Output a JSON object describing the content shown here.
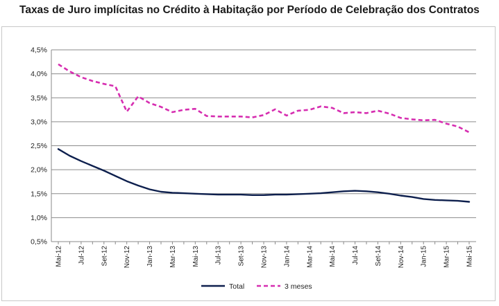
{
  "chart_data": {
    "type": "line",
    "title": "Taxas de Juro implícitas no Crédito à Habitação por Período de Celebração dos Contratos",
    "xlabel": "",
    "ylabel": "",
    "ylim": [
      0.5,
      4.5
    ],
    "y_ticks": [
      "0,5%",
      "1,0%",
      "1,5%",
      "2,0%",
      "2,5%",
      "3,0%",
      "3,5%",
      "4,0%",
      "4,5%"
    ],
    "categories": [
      "Mai-12",
      "Jun-12",
      "Jul-12",
      "Ago-12",
      "Set-12",
      "Out-12",
      "Nov-12",
      "Dez-12",
      "Jan-13",
      "Fev-13",
      "Mar-13",
      "Abr-13",
      "Mai-13",
      "Jun-13",
      "Jul-13",
      "Ago-13",
      "Set-13",
      "Out-13",
      "Nov-13",
      "Dez-13",
      "Jan-14",
      "Fev-14",
      "Mar-14",
      "Abr-14",
      "Mai-14",
      "Jun-14",
      "Jul-14",
      "Ago-14",
      "Set-14",
      "Out-14",
      "Nov-14",
      "Dez-14",
      "Jan-15",
      "Fev-15",
      "Mar-15",
      "Abr-15",
      "Mai-15"
    ],
    "x_tick_labels": [
      "Mai-12",
      "Jul-12",
      "Set-12",
      "Nov-12",
      "Jan-13",
      "Mar-13",
      "Mai-13",
      "Jul-13",
      "Set-13",
      "Nov-13",
      "Jan-14",
      "Mar-14",
      "Mai-14",
      "Jul-14",
      "Set-14",
      "Nov-14",
      "Jan-15",
      "Mar-15",
      "Mai-15"
    ],
    "series": [
      {
        "name": "Total",
        "color": "#0d1f4d",
        "style": "solid",
        "values": [
          2.43,
          2.29,
          2.18,
          2.08,
          1.98,
          1.87,
          1.76,
          1.67,
          1.59,
          1.54,
          1.52,
          1.51,
          1.5,
          1.49,
          1.48,
          1.48,
          1.48,
          1.47,
          1.47,
          1.48,
          1.48,
          1.49,
          1.5,
          1.51,
          1.53,
          1.55,
          1.56,
          1.55,
          1.53,
          1.5,
          1.46,
          1.43,
          1.39,
          1.37,
          1.36,
          1.35,
          1.33
        ]
      },
      {
        "name": "3 meses",
        "color": "#d62db0",
        "style": "dashed",
        "values": [
          4.2,
          4.05,
          3.93,
          3.85,
          3.79,
          3.74,
          3.21,
          3.53,
          3.39,
          3.31,
          3.2,
          3.25,
          3.27,
          3.12,
          3.11,
          3.11,
          3.11,
          3.09,
          3.14,
          3.26,
          3.13,
          3.23,
          3.25,
          3.32,
          3.29,
          3.18,
          3.2,
          3.18,
          3.23,
          3.17,
          3.08,
          3.05,
          3.03,
          3.04,
          2.96,
          2.9,
          2.78
        ]
      }
    ],
    "grid": true,
    "legend": "bottom"
  }
}
